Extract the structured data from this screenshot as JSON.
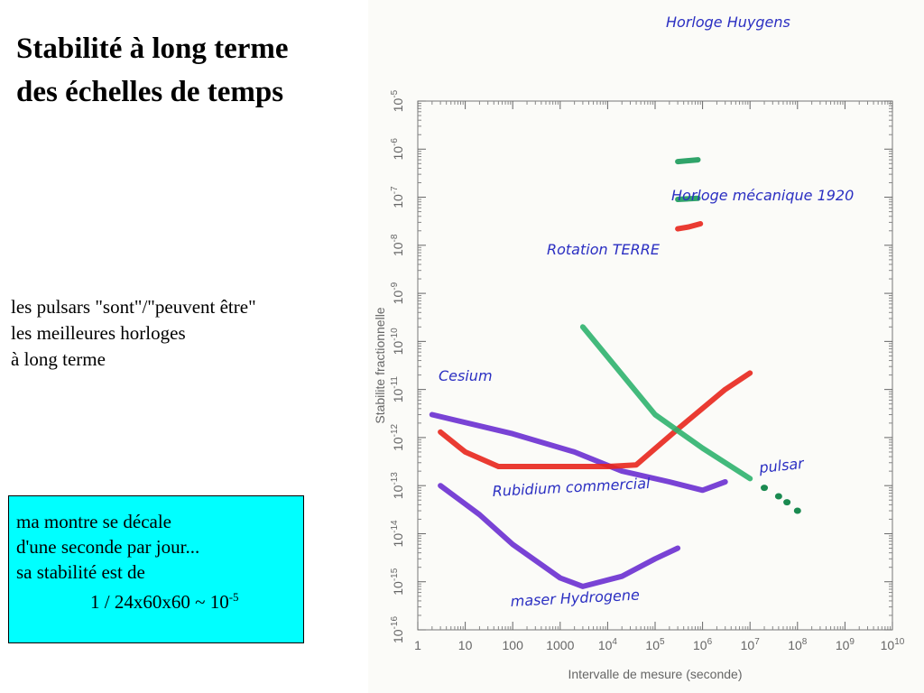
{
  "title": {
    "line1": "Stabilité à long terme",
    "line2": "des échelles de temps"
  },
  "note": {
    "line1": "les pulsars \"sont\"/\"peuvent être\"",
    "line2": "les meilleures horloges",
    "line3": "à long terme"
  },
  "watch_box": {
    "line1": "ma montre se décale",
    "line2": "d'une seconde par jour...",
    "line3": "sa stabilité est de",
    "formula": "1 / 24x60x60   ~ 10",
    "exponent": "-5"
  },
  "chart_data": {
    "type": "line",
    "xlabel": "Intervalle de mesure (seconde)",
    "ylabel": "Stabilite fractionnelle",
    "x_scale": "log",
    "y_scale": "log",
    "xlim": [
      1,
      10000000000
    ],
    "ylim": [
      1e-16,
      1e-05
    ],
    "x_ticks": [
      {
        "v": 1,
        "base": "1",
        "exp": ""
      },
      {
        "v": 10,
        "base": "10",
        "exp": ""
      },
      {
        "v": 100,
        "base": "100",
        "exp": ""
      },
      {
        "v": 1000,
        "base": "1000",
        "exp": ""
      },
      {
        "v": 10000,
        "base": "10",
        "exp": "4"
      },
      {
        "v": 100000,
        "base": "10",
        "exp": "5"
      },
      {
        "v": 1000000,
        "base": "10",
        "exp": "6"
      },
      {
        "v": 10000000,
        "base": "10",
        "exp": "7"
      },
      {
        "v": 100000000,
        "base": "10",
        "exp": "8"
      },
      {
        "v": 1000000000,
        "base": "10",
        "exp": "9"
      },
      {
        "v": 10000000000,
        "base": "10",
        "exp": "10"
      }
    ],
    "y_ticks": [
      {
        "v": 1e-16,
        "base": "10",
        "exp": "-16"
      },
      {
        "v": 1e-15,
        "base": "10",
        "exp": "-15"
      },
      {
        "v": 1e-14,
        "base": "10",
        "exp": "-14"
      },
      {
        "v": 1e-13,
        "base": "10",
        "exp": "-13"
      },
      {
        "v": 1e-12,
        "base": "10",
        "exp": "-12"
      },
      {
        "v": 1e-11,
        "base": "10",
        "exp": "-11"
      },
      {
        "v": 1e-10,
        "base": "10",
        "exp": "-10"
      },
      {
        "v": 1e-09,
        "base": "10",
        "exp": "-9"
      },
      {
        "v": 1e-08,
        "base": "10",
        "exp": "-8"
      },
      {
        "v": 1e-07,
        "base": "10",
        "exp": "-7"
      },
      {
        "v": 1e-06,
        "base": "10",
        "exp": "-6"
      },
      {
        "v": 1e-05,
        "base": "10",
        "exp": "-5"
      }
    ],
    "series": [
      {
        "name": "Horloge Huygens",
        "color": "#1a9a5a",
        "points": [
          [
            300000,
            5.5e-07
          ],
          [
            800000,
            6e-07
          ]
        ]
      },
      {
        "name": "Horloge mécanique 1920",
        "color": "#1a9a5a",
        "points": [
          [
            300000,
            9e-08
          ],
          [
            800000,
            9.5e-08
          ]
        ]
      },
      {
        "name": "Rotation TERRE",
        "color": "#e8261c",
        "points": [
          [
            300000,
            2.2e-08
          ],
          [
            500000,
            2.4e-08
          ],
          [
            900000,
            2.8e-08
          ]
        ]
      },
      {
        "name": "Cesium",
        "color": "#6a2fd0",
        "points": [
          [
            2,
            3e-12
          ],
          [
            100,
            1.2e-12
          ],
          [
            2000,
            5e-13
          ],
          [
            20000,
            2e-13
          ],
          [
            200000,
            1.2e-13
          ],
          [
            1000000,
            8e-14
          ],
          [
            3000000,
            1.2e-13
          ]
        ]
      },
      {
        "name": "Rubidium commercial",
        "color": "#e8261c",
        "points": [
          [
            3,
            1.3e-12
          ],
          [
            10,
            5e-13
          ],
          [
            50,
            2.5e-13
          ],
          [
            1000,
            2.5e-13
          ],
          [
            10000,
            2.5e-13
          ],
          [
            40000,
            2.7e-13
          ],
          [
            300000,
            1.5e-12
          ],
          [
            3000000,
            1e-11
          ],
          [
            10000000,
            2.2e-11
          ]
        ]
      },
      {
        "name": "pulsar",
        "color": "#2fb36e",
        "points": [
          [
            3000,
            2e-10
          ],
          [
            100000,
            3e-12
          ],
          [
            1000000,
            6e-13
          ],
          [
            10000000,
            1.4e-13
          ]
        ]
      },
      {
        "name": "maser Hydrogene",
        "color": "#6a2fd0",
        "points": [
          [
            3,
            1e-13
          ],
          [
            20,
            2.5e-14
          ],
          [
            100,
            6e-15
          ],
          [
            1000,
            1.2e-15
          ],
          [
            3000,
            8e-16
          ],
          [
            20000,
            1.3e-15
          ],
          [
            100000,
            3e-15
          ],
          [
            300000,
            5e-15
          ]
        ]
      }
    ],
    "pulsar_extension": [
      [
        20000000,
        9e-14
      ],
      [
        40000000,
        6e-14
      ],
      [
        60000000,
        4.5e-14
      ],
      [
        100000000,
        3e-14
      ]
    ]
  }
}
